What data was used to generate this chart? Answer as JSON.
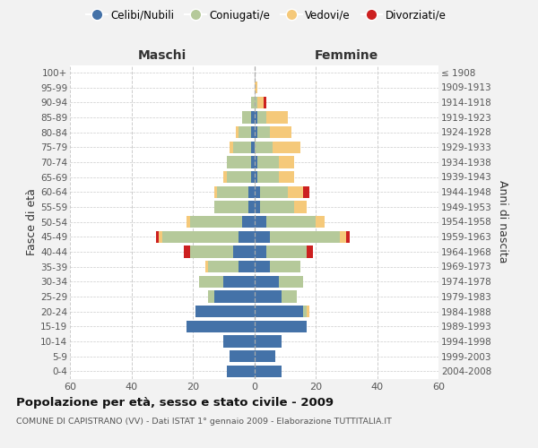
{
  "age_groups": [
    "0-4",
    "5-9",
    "10-14",
    "15-19",
    "20-24",
    "25-29",
    "30-34",
    "35-39",
    "40-44",
    "45-49",
    "50-54",
    "55-59",
    "60-64",
    "65-69",
    "70-74",
    "75-79",
    "80-84",
    "85-89",
    "90-94",
    "95-99",
    "100+"
  ],
  "birth_years": [
    "2004-2008",
    "1999-2003",
    "1994-1998",
    "1989-1993",
    "1984-1988",
    "1979-1983",
    "1974-1978",
    "1969-1973",
    "1964-1968",
    "1959-1963",
    "1954-1958",
    "1949-1953",
    "1944-1948",
    "1939-1943",
    "1934-1938",
    "1929-1933",
    "1924-1928",
    "1919-1923",
    "1914-1918",
    "1909-1913",
    "≤ 1908"
  ],
  "maschi_celibi": [
    9,
    8,
    10,
    22,
    19,
    13,
    10,
    5,
    7,
    5,
    4,
    2,
    2,
    1,
    1,
    1,
    1,
    1,
    0,
    0,
    0
  ],
  "maschi_coniugati": [
    0,
    0,
    0,
    0,
    0,
    2,
    8,
    10,
    14,
    25,
    17,
    11,
    10,
    8,
    8,
    6,
    4,
    3,
    1,
    0,
    0
  ],
  "maschi_vedovi": [
    0,
    0,
    0,
    0,
    0,
    0,
    0,
    1,
    0,
    1,
    1,
    0,
    1,
    1,
    0,
    1,
    1,
    0,
    0,
    0,
    0
  ],
  "maschi_divorziati": [
    0,
    0,
    0,
    0,
    0,
    0,
    0,
    0,
    2,
    1,
    0,
    0,
    0,
    0,
    0,
    0,
    0,
    0,
    0,
    0,
    0
  ],
  "femmine_nubili": [
    9,
    7,
    9,
    17,
    16,
    9,
    8,
    5,
    4,
    5,
    4,
    2,
    2,
    1,
    1,
    0,
    1,
    1,
    0,
    0,
    0
  ],
  "femmine_coniugate": [
    0,
    0,
    0,
    0,
    1,
    5,
    8,
    10,
    13,
    23,
    16,
    11,
    9,
    7,
    7,
    6,
    4,
    3,
    1,
    0,
    0
  ],
  "femmine_vedove": [
    0,
    0,
    0,
    0,
    1,
    0,
    0,
    0,
    0,
    2,
    3,
    4,
    5,
    5,
    5,
    9,
    7,
    7,
    2,
    1,
    0
  ],
  "femmine_divorziate": [
    0,
    0,
    0,
    0,
    0,
    0,
    0,
    0,
    2,
    1,
    0,
    0,
    2,
    0,
    0,
    0,
    0,
    0,
    1,
    0,
    0
  ],
  "color_celibi": "#4472a8",
  "color_coniugati": "#b5c99a",
  "color_vedovi": "#f5c97a",
  "color_divorziati": "#cc2020",
  "xlim": 60,
  "bg_color": "#f2f2f2",
  "plot_bg": "#ffffff",
  "title": "Popolazione per età, sesso e stato civile - 2009",
  "subtitle": "COMUNE DI CAPISTRANO (VV) - Dati ISTAT 1° gennaio 2009 - Elaborazione TUTTITALIA.IT",
  "label_maschi": "Maschi",
  "label_femmine": "Femmine",
  "label_fasce": "Fasce di età",
  "label_anni": "Anni di nascita",
  "legend_labels": [
    "Celibi/Nubili",
    "Coniugati/e",
    "Vedovi/e",
    "Divorziati/e"
  ]
}
